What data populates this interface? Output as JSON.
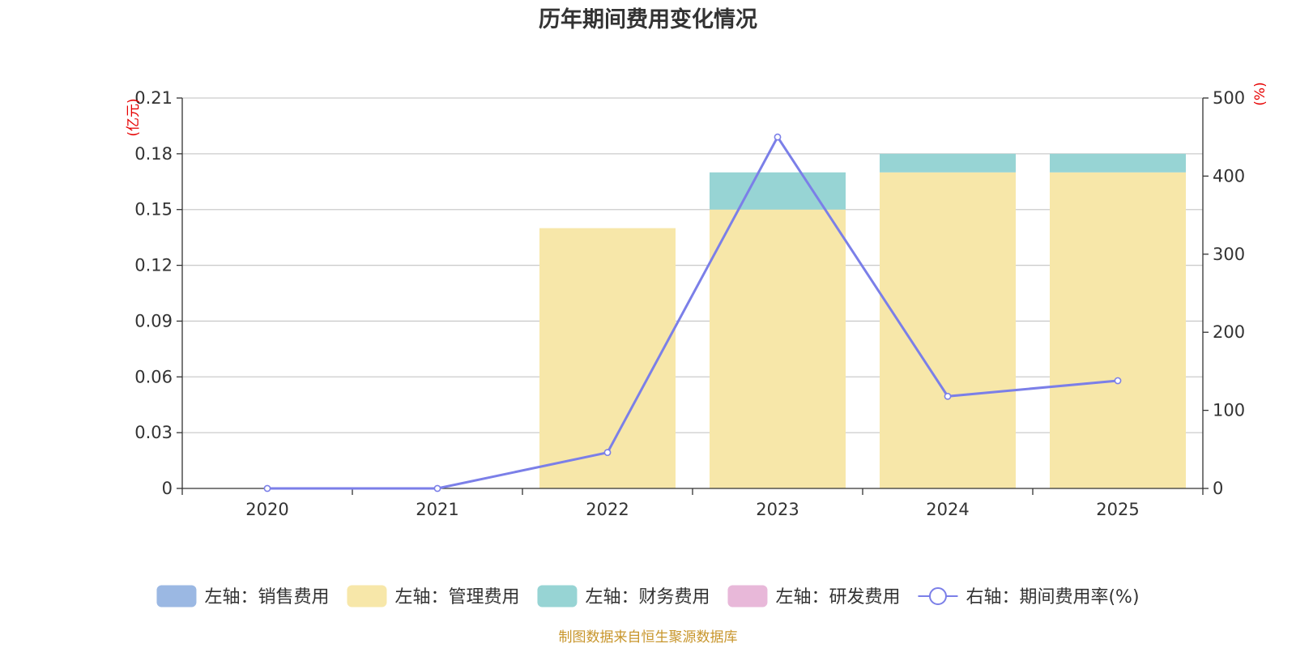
{
  "chart_data": {
    "type": "bar",
    "title": "历年期间费用变化情况",
    "categories": [
      "2020",
      "2021",
      "2022",
      "2023",
      "2024",
      "2025"
    ],
    "left_axis": {
      "unit_label": "(亿元)",
      "ylim": [
        0,
        0.21
      ],
      "ticks": [
        "0",
        "0.03",
        "0.06",
        "0.09",
        "0.12",
        "0.15",
        "0.18",
        "0.21"
      ]
    },
    "right_axis": {
      "unit_label": "(%)",
      "ylim": [
        0,
        500
      ],
      "ticks": [
        "0",
        "100",
        "200",
        "300",
        "400",
        "500"
      ]
    },
    "series": [
      {
        "name": "左轴：销售费用",
        "type": "bar",
        "axis": "left",
        "color": "#9bb8e3",
        "values": [
          0,
          0,
          0,
          0,
          0,
          0
        ]
      },
      {
        "name": "左轴：管理费用",
        "type": "bar",
        "axis": "left",
        "color": "#f7e7a9",
        "values": [
          0,
          0,
          0.14,
          0.15,
          0.17,
          0.17
        ]
      },
      {
        "name": "左轴：财务费用",
        "type": "bar",
        "axis": "left",
        "color": "#97d4d4",
        "values": [
          0,
          0,
          0,
          0.02,
          0.01,
          0.01
        ]
      },
      {
        "name": "左轴：研发费用",
        "type": "bar",
        "axis": "left",
        "color": "#e8b8d9",
        "values": [
          0,
          0,
          0,
          0,
          0,
          0
        ]
      },
      {
        "name": "右轴：期间费用率(%)",
        "type": "line",
        "axis": "right",
        "color": "#7b7fe8",
        "values": [
          0,
          0,
          46,
          450,
          118,
          138
        ]
      }
    ],
    "legend_position": "bottom",
    "source": "制图数据来自恒生聚源数据库"
  }
}
